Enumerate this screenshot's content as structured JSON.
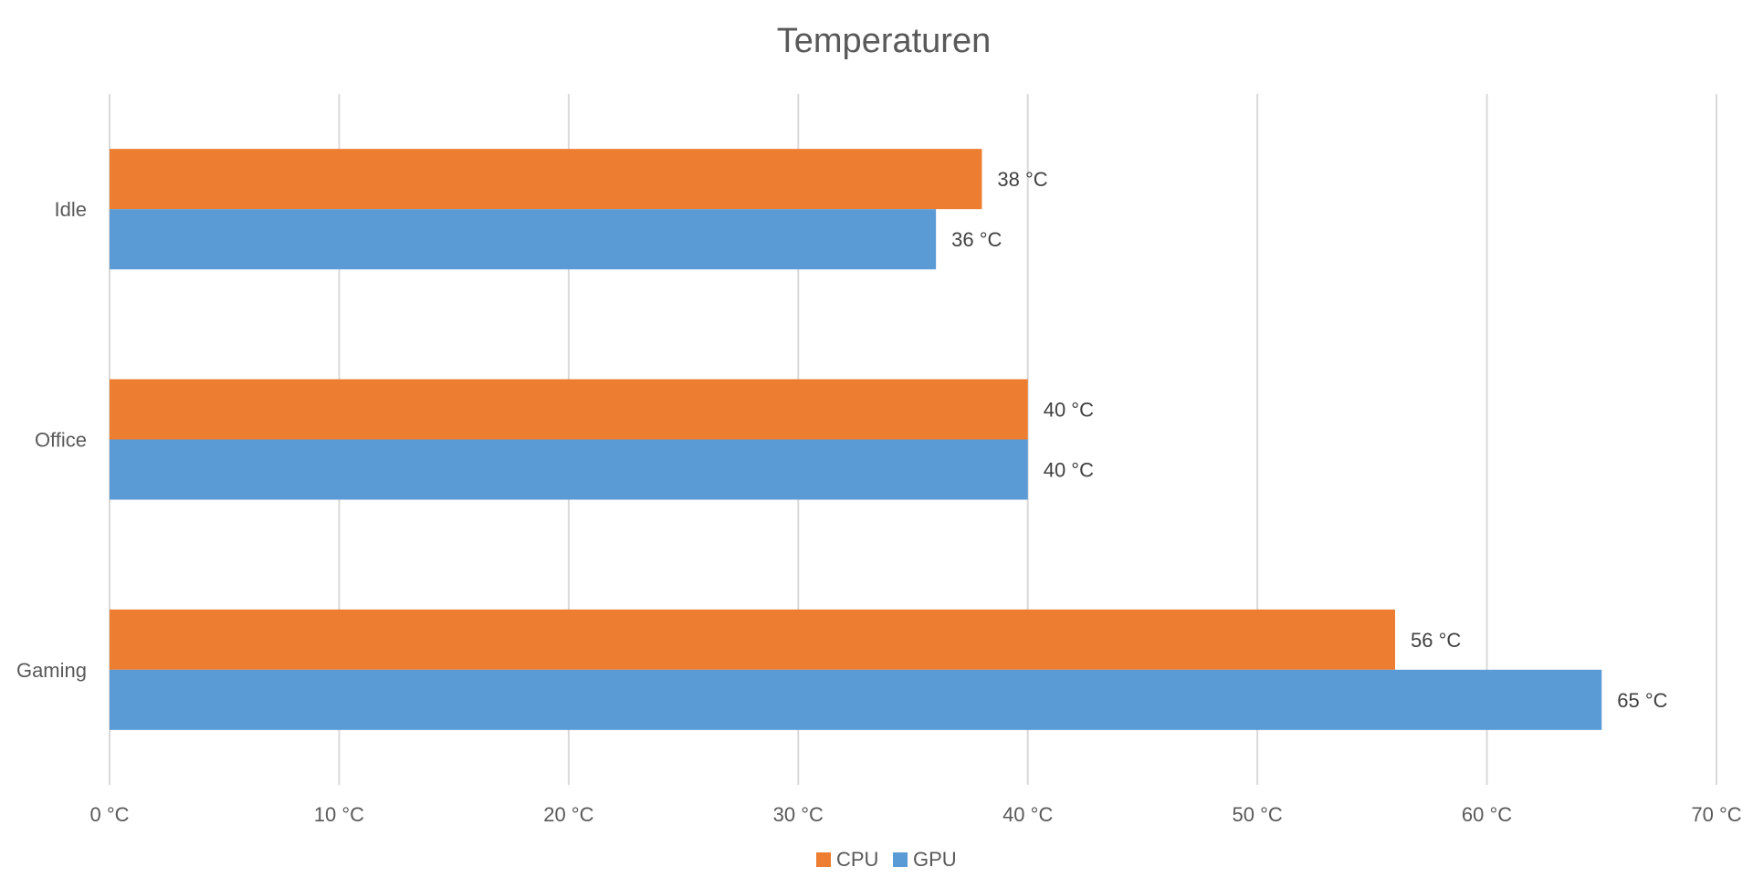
{
  "chart_data": {
    "type": "bar",
    "orientation": "horizontal",
    "title": "Temperaturen",
    "categories": [
      "Idle",
      "Office",
      "Gaming"
    ],
    "series": [
      {
        "name": "CPU",
        "color": "#ED7D31",
        "values": [
          38,
          40,
          56
        ],
        "labels": [
          "38 °C",
          "40 °C",
          "56 °C"
        ]
      },
      {
        "name": "GPU",
        "color": "#5B9BD5",
        "values": [
          36,
          40,
          65
        ],
        "labels": [
          "36 °C",
          "40 °C",
          "65 °C"
        ]
      }
    ],
    "xlim": [
      0,
      70
    ],
    "x_ticks": [
      0,
      10,
      20,
      30,
      40,
      50,
      60,
      70
    ],
    "x_tick_labels": [
      "0 °C",
      "10 °C",
      "20 °C",
      "30 °C",
      "40 °C",
      "50 °C",
      "60 °C",
      "70 °C"
    ],
    "xlabel": "",
    "ylabel": "",
    "grid": true,
    "legend_position": "bottom"
  }
}
